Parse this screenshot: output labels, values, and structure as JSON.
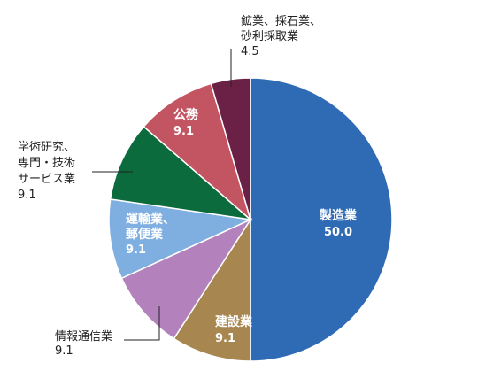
{
  "chart_data": {
    "type": "pie",
    "title": "",
    "slices": [
      {
        "label": [
          "製造業"
        ],
        "value": "50.0",
        "share": 50.0,
        "color": "#2f6bb5",
        "placement": "inside"
      },
      {
        "label": [
          "建設業"
        ],
        "value": "9.1",
        "share": 9.1,
        "color": "#a8864f",
        "placement": "inside"
      },
      {
        "label": [
          "情報通信業"
        ],
        "value": "9.1",
        "share": 9.1,
        "color": "#b382bd",
        "placement": "outside"
      },
      {
        "label": [
          "運輸業、",
          "郵便業"
        ],
        "value": "9.1",
        "share": 9.1,
        "color": "#7faee0",
        "placement": "inside"
      },
      {
        "label": [
          "学術研究、",
          "専門・技術",
          "サービス業"
        ],
        "value": "9.1",
        "share": 9.1,
        "color": "#0c6b3d",
        "placement": "outside"
      },
      {
        "label": [
          "公務"
        ],
        "value": "9.1",
        "share": 9.1,
        "color": "#c35461",
        "placement": "inside"
      },
      {
        "label": [
          "鉱業、採石業、",
          "砂利採取業"
        ],
        "value": "4.5",
        "share": 4.5,
        "color": "#6b2146",
        "placement": "outside"
      }
    ]
  }
}
